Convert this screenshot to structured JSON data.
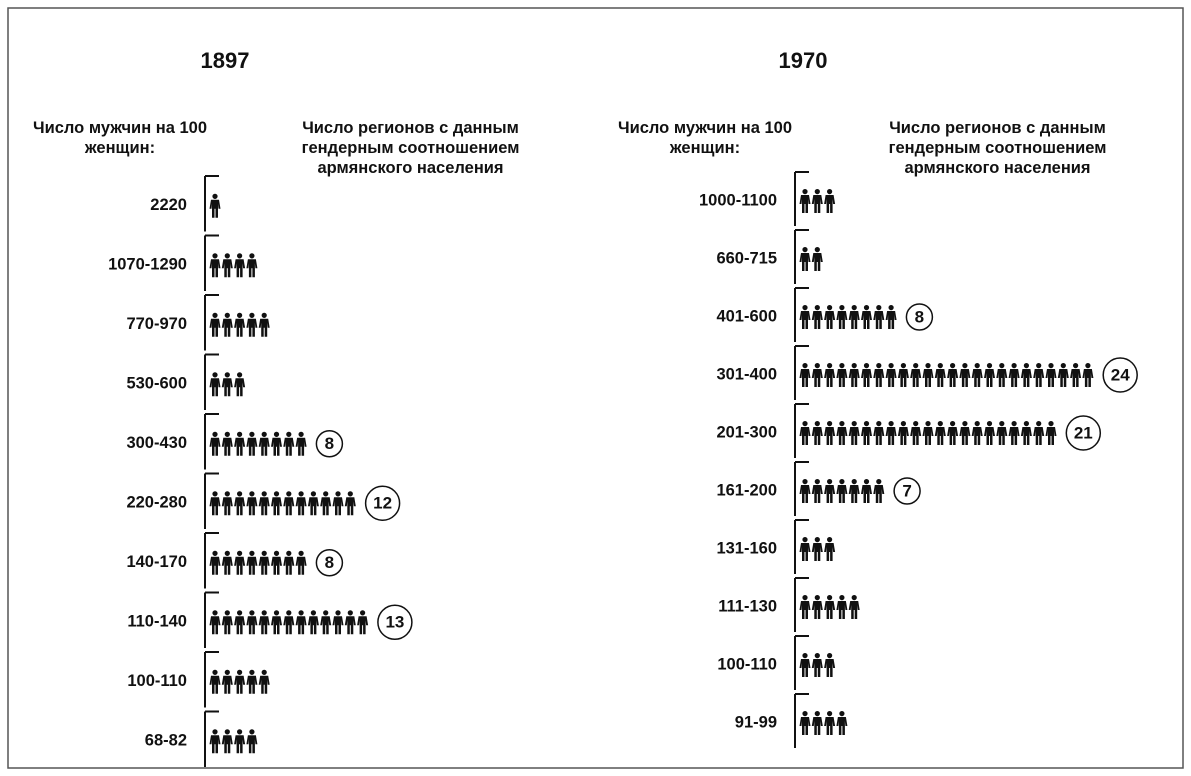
{
  "chart_data": [
    {
      "type": "pictogram",
      "title": "1897",
      "category_label": "Число мужчин на 100 женщин:",
      "value_label": "Число регионов с данным гендерным соотношением армянского населения",
      "categories": [
        "2220",
        "1070-1290",
        "770-970",
        "530-600",
        "300-430",
        "220-280",
        "140-170",
        "110-140",
        "100-110",
        "68-82"
      ],
      "values": [
        1,
        4,
        5,
        3,
        8,
        12,
        8,
        13,
        5,
        4
      ],
      "value_labels": [
        null,
        null,
        null,
        null,
        "8",
        "12",
        "8",
        "13",
        null,
        null
      ],
      "color": "#111111"
    },
    {
      "type": "pictogram",
      "title": "1970",
      "category_label": "Число мужчин на 100 женщин:",
      "value_label": "Число регионов с данным гендерным соотношением армянского населения",
      "categories": [
        "1000-1100",
        "660-715",
        "401-600",
        "301-400",
        "201-300",
        "161-200",
        "131-160",
        "111-130",
        "100-110",
        "91-99"
      ],
      "values": [
        3,
        2,
        8,
        24,
        21,
        7,
        3,
        5,
        3,
        4
      ],
      "value_labels": [
        null,
        null,
        "8",
        "24",
        "21",
        "7",
        null,
        null,
        null,
        null
      ],
      "color": "#111111"
    }
  ]
}
